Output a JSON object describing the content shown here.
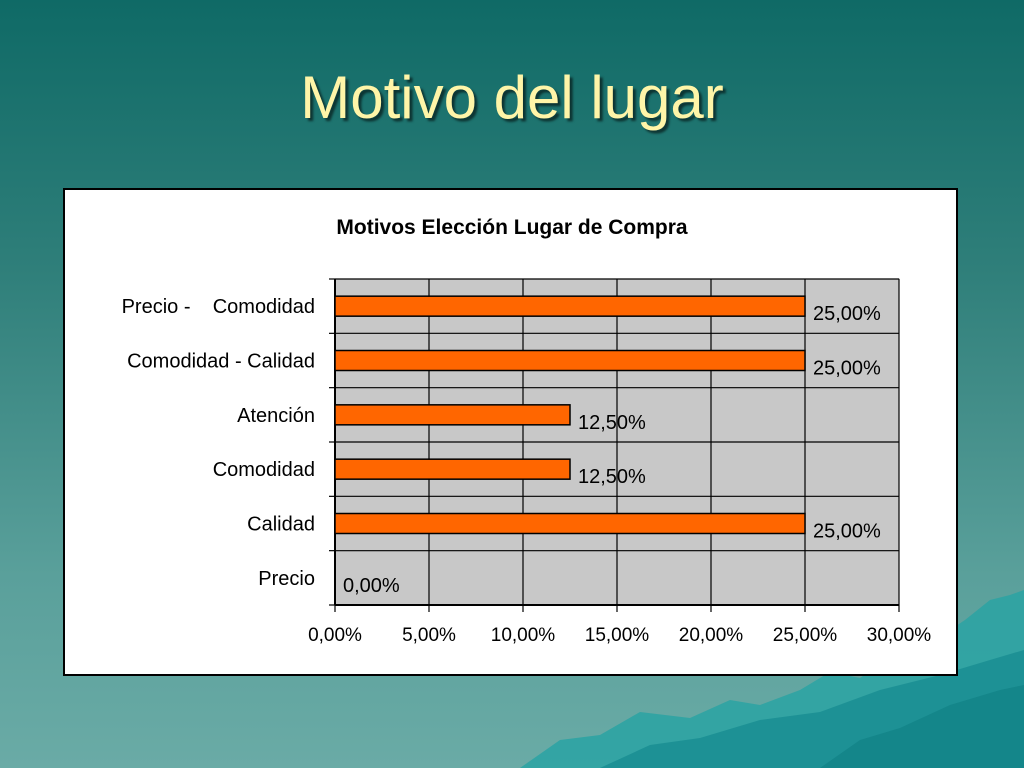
{
  "slide": {
    "title": "Motivo del lugar"
  },
  "colors": {
    "background_top": "#0f6a66",
    "background_bottom": "#6aaba6",
    "title": "#fff5a8",
    "plot_area": "#c8c8c8",
    "bar": "#ff6600"
  },
  "chart_data": {
    "type": "bar",
    "orientation": "horizontal",
    "title": "Motivos Elección Lugar de Compra",
    "categories": [
      "Precio -    Comodidad",
      "Comodidad - Calidad",
      "Atención",
      "Comodidad",
      "Calidad",
      "Precio"
    ],
    "values": [
      25.0,
      25.0,
      12.5,
      12.5,
      25.0,
      0.0
    ],
    "value_labels": [
      "25,00%",
      "25,00%",
      "12,50%",
      "12,50%",
      "25,00%",
      "0,00%"
    ],
    "xlim": [
      0,
      30
    ],
    "x_ticks": [
      0,
      5,
      10,
      15,
      20,
      25,
      30
    ],
    "x_tick_labels": [
      "0,00%",
      "5,00%",
      "10,00%",
      "15,00%",
      "20,00%",
      "25,00%",
      "30,00%"
    ],
    "xlabel": "",
    "ylabel": "",
    "grid": true,
    "legend": false
  }
}
